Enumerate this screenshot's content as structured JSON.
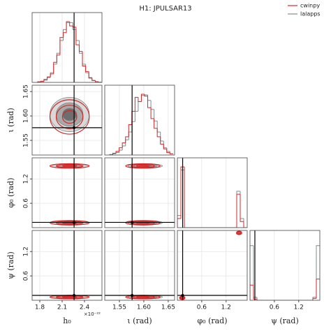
{
  "chart_data": {
    "type": "corner",
    "title": "H1: JPULSAR13",
    "legend": "upper right",
    "grid": true,
    "hist_ylim": [
      0,
      1.15
    ],
    "parameters": [
      {
        "label": "h₀",
        "offset_label": "×10⁻²²",
        "lim": [
          1.697,
          2.634
        ],
        "ticks": [
          1.8,
          2.1,
          2.4
        ],
        "truth": 2.26,
        "bins": [
          1.77,
          1.813,
          1.856,
          1.899,
          1.942,
          1.985,
          2.028,
          2.071,
          2.114,
          2.157,
          2.2,
          2.243,
          2.286,
          2.329,
          2.372,
          2.415,
          2.458,
          2.501,
          2.544,
          2.587,
          2.63
        ]
      },
      {
        "label": "ι (rad)",
        "lim": [
          1.52,
          1.663
        ],
        "ticks": [
          1.55,
          {
            "value": 1.6,
            "label": "1.60"
          },
          1.65
        ],
        "truth": 1.576,
        "bins": [
          1.53,
          1.5365,
          1.543,
          1.5495,
          1.556,
          1.5625,
          1.569,
          1.5755,
          1.582,
          1.5885,
          1.595,
          1.6015,
          1.608,
          1.6145,
          1.621,
          1.6275,
          1.634,
          1.6405,
          1.647,
          1.6535,
          1.66
        ]
      },
      {
        "label": "φ₀ (rad)",
        "lim": [
          0,
          1.72
        ],
        "ticks": [
          0.6,
          1.2
        ],
        "truth": 0.13,
        "bins": [
          0,
          0.086,
          0.172,
          0.258,
          0.344,
          0.43,
          0.516,
          0.602,
          0.688,
          0.774,
          0.86,
          0.946,
          1.032,
          1.118,
          1.204,
          1.29,
          1.376,
          1.462,
          1.548,
          1.634,
          1.72
        ]
      },
      {
        "label": "ψ (rad)",
        "lim": [
          0,
          1.72
        ],
        "ticks": [
          0.6,
          1.2
        ],
        "truth": 0.12,
        "bins": [
          0,
          0.086,
          0.172,
          0.258,
          0.344,
          0.43,
          0.516,
          0.602,
          0.688,
          0.774,
          0.86,
          0.946,
          1.032,
          1.118,
          1.204,
          1.29,
          1.376,
          1.462,
          1.548,
          1.634,
          1.72
        ]
      }
    ],
    "series": [
      {
        "name": "lalapps",
        "color": "#7f8c8d",
        "histograms": [
          [
            0.0045,
            0.013,
            0.034,
            0.08,
            0.16,
            0.3,
            0.48,
            0.69,
            0.87,
            0.985,
            0.985,
            0.87,
            0.69,
            0.48,
            0.3,
            0.16,
            0.08,
            0.034,
            0.013,
            0.0045
          ],
          [
            0.01,
            0.02,
            0.04,
            0.08,
            0.15,
            0.25,
            0.38,
            0.55,
            0.72,
            0.88,
            0.98,
            0.99,
            0.9,
            0.75,
            0.56,
            0.38,
            0.23,
            0.12,
            0.06,
            0.02
          ],
          [
            0.2,
            0.95,
            0,
            0,
            0,
            0,
            0,
            0,
            0,
            0,
            0,
            0,
            0,
            0,
            0,
            0,
            0,
            0.6,
            0.15,
            0
          ],
          [
            0.9,
            0.05,
            0,
            0,
            0,
            0,
            0,
            0,
            0,
            0,
            0,
            0,
            0,
            0,
            0,
            0,
            0,
            0,
            0.05,
            0.9
          ]
        ],
        "contours": [
          {
            "px": 0,
            "py": 1,
            "x": 2.2,
            "y": 1.603,
            "sx": 0.12,
            "sy": 0.016
          },
          {
            "px": 0,
            "py": 2,
            "x": 2.2,
            "y": 0.12,
            "sx": 0.12,
            "sy": 0.025
          },
          {
            "px": 0,
            "py": 2,
            "x": 2.2,
            "y": 1.52,
            "sx": 0.12,
            "sy": 0.025
          },
          {
            "px": 1,
            "py": 2,
            "x": 1.603,
            "y": 0.12,
            "sx": 0.016,
            "sy": 0.025
          },
          {
            "px": 1,
            "py": 2,
            "x": 1.603,
            "y": 1.52,
            "sx": 0.016,
            "sy": 0.025
          },
          {
            "px": 0,
            "py": 3,
            "x": 2.2,
            "y": 0.08,
            "sx": 0.12,
            "sy": 0.02
          },
          {
            "px": 1,
            "py": 3,
            "x": 1.603,
            "y": 0.08,
            "sx": 0.016,
            "sy": 0.02
          },
          {
            "px": 2,
            "py": 3,
            "x": 0.12,
            "y": 0.06,
            "sx": 0.03,
            "sy": 0.02
          }
        ]
      },
      {
        "name": "cwinpy",
        "color": "#d62728",
        "histograms": [
          [
            0.01,
            0.02,
            0.05,
            0.09,
            0.14,
            0.33,
            0.45,
            0.74,
            0.82,
            1.0,
            0.93,
            0.91,
            0.62,
            0.51,
            0.27,
            0.18,
            0.07,
            0.03,
            0.01,
            0
          ],
          [
            0,
            0.03,
            0.06,
            0.12,
            0.2,
            0.3,
            0.5,
            0.72,
            0.95,
            0.88,
            1.0,
            0.97,
            0.78,
            0.6,
            0.44,
            0.3,
            0.18,
            0.1,
            0.04,
            0.02
          ],
          [
            0.15,
            1.0,
            0,
            0,
            0,
            0,
            0,
            0,
            0,
            0,
            0,
            0,
            0,
            0,
            0,
            0,
            0,
            0.55,
            0.1,
            0
          ],
          [
            0.25,
            0.02,
            0,
            0,
            0,
            0,
            0,
            0,
            0,
            0,
            0,
            0,
            0,
            0,
            0,
            0,
            0,
            0,
            0.03,
            0.35
          ]
        ],
        "contours": [
          {
            "px": 0,
            "py": 1,
            "x": 2.2,
            "y": 1.598,
            "sx": 0.12,
            "sy": 0.016
          },
          {
            "px": 0,
            "py": 2,
            "x": 2.2,
            "y": 0.12,
            "sx": 0.12,
            "sy": 0.025
          },
          {
            "px": 0,
            "py": 2,
            "x": 2.2,
            "y": 1.52,
            "sx": 0.12,
            "sy": 0.025
          },
          {
            "px": 1,
            "py": 2,
            "x": 1.598,
            "y": 0.12,
            "sx": 0.016,
            "sy": 0.025
          },
          {
            "px": 1,
            "py": 2,
            "x": 1.598,
            "y": 1.52,
            "sx": 0.016,
            "sy": 0.025
          },
          {
            "px": 0,
            "py": 3,
            "x": 2.2,
            "y": 0.08,
            "sx": 0.12,
            "sy": 0.02
          },
          {
            "px": 1,
            "py": 3,
            "x": 1.598,
            "y": 0.08,
            "sx": 0.016,
            "sy": 0.02
          },
          {
            "px": 2,
            "py": 3,
            "x": 0.12,
            "y": 0.06,
            "sx": 0.03,
            "sy": 0.02
          },
          {
            "px": 2,
            "py": 3,
            "x": 1.52,
            "y": 1.66,
            "sx": 0.03,
            "sy": 0.02
          }
        ]
      }
    ]
  }
}
